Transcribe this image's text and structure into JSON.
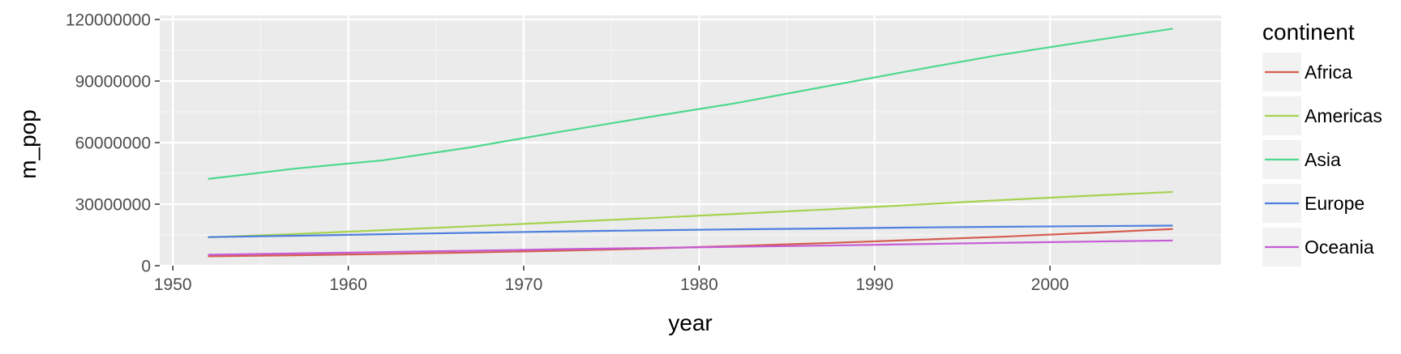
{
  "chart_data": {
    "type": "line",
    "xlabel": "year",
    "ylabel": "m_pop",
    "xlim": [
      1949.25,
      2009.75
    ],
    "ylim": [
      0,
      122000000
    ],
    "x_ticks": [
      1950,
      1960,
      1970,
      1980,
      1990,
      2000
    ],
    "y_ticks": [
      0,
      30000000,
      60000000,
      90000000,
      120000000
    ],
    "x_tick_labels": [
      "1950",
      "1960",
      "1970",
      "1980",
      "1990",
      "2000"
    ],
    "y_tick_labels": [
      "0",
      "30000000",
      "60000000",
      "90000000",
      "120000000"
    ],
    "grid": true,
    "legend": {
      "title": "continent",
      "position": "right"
    },
    "x": [
      1952,
      1957,
      1962,
      1967,
      1972,
      1977,
      1982,
      1987,
      1992,
      1997,
      2002,
      2007
    ],
    "series": [
      {
        "name": "Africa",
        "color": "#d55e50",
        "values": [
          4570010,
          5093033,
          5702247,
          6447875,
          7305376,
          8328097,
          9602857,
          10954129,
          12481500,
          14048101,
          15883100,
          17875763
        ]
      },
      {
        "name": "Americas",
        "color": "#a6d24f",
        "values": [
          13806098,
          15478157,
          17330810,
          19229865,
          21175368,
          23122708,
          25211637,
          27310159,
          29570964,
          31876016,
          33990910,
          35954847
        ]
      },
      {
        "name": "Asia",
        "color": "#4fd88e",
        "values": [
          42283556,
          47356988,
          51404763,
          57747361,
          65180977,
          72257987,
          79095018,
          87006690,
          94948248,
          102523803,
          109145521,
          115513752
        ]
      },
      {
        "name": "Europe",
        "color": "#4f80de",
        "values": [
          13937362,
          14596345,
          15345172,
          16039299,
          16687835,
          17238818,
          17708897,
          18103139,
          18604760,
          18964805,
          19274129,
          19536618
        ]
      },
      {
        "name": "Oceania",
        "color": "#c65cd6",
        "values": [
          5343003,
          5970988,
          6641759,
          7300207,
          8053050,
          8619500,
          9197425,
          9787208,
          10459826,
          11120715,
          11727414,
          12274974
        ]
      }
    ]
  }
}
